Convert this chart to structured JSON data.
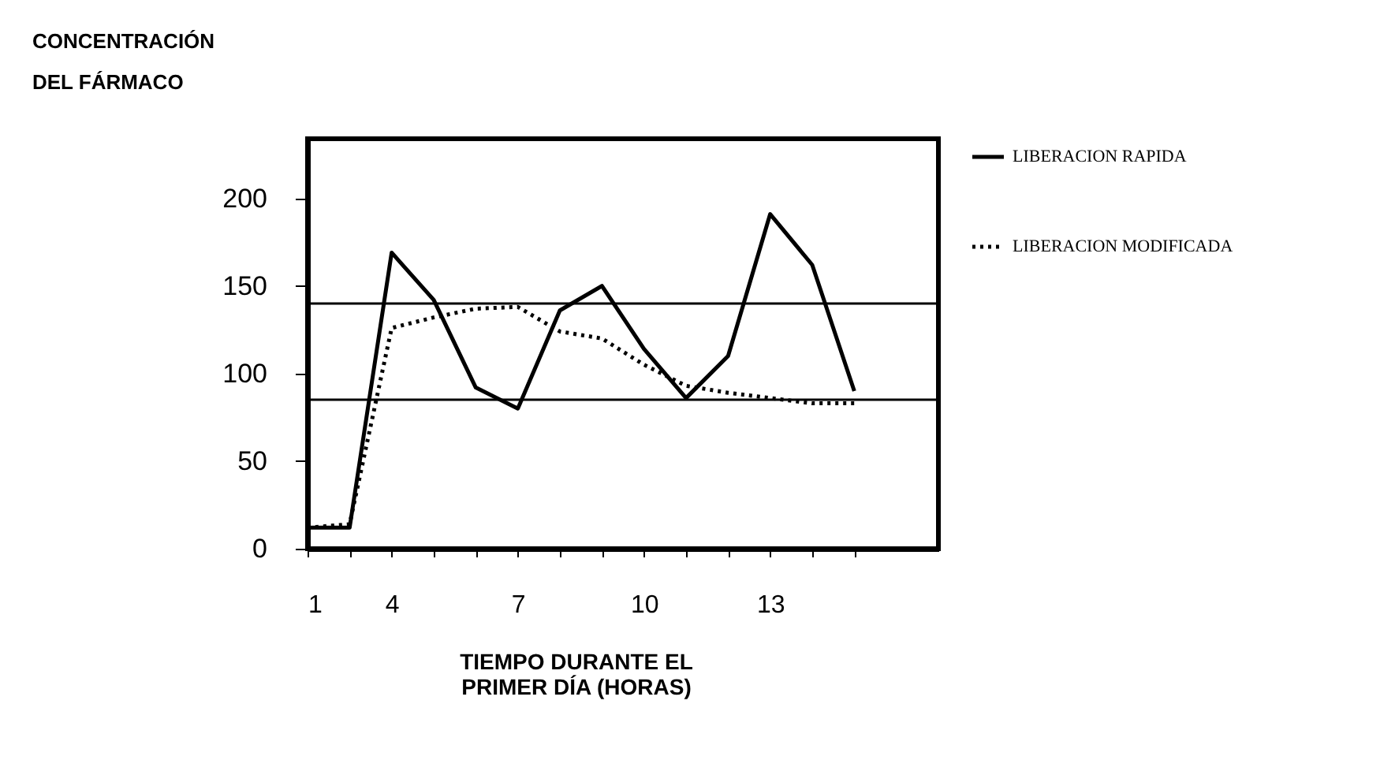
{
  "chart_data": {
    "type": "line",
    "ylabel": "CONCENTRACIÓN DEL FÁRMACO",
    "xlabel": "TIEMPO DURANTE EL PRIMER DÍA (HORAS)",
    "categories": [
      "1",
      null,
      "4",
      null,
      null,
      "7",
      null,
      null,
      "10",
      null,
      null,
      "13",
      null,
      null
    ],
    "series": [
      {
        "name": "LIBERACION RAPIDA",
        "color": "#000000",
        "line_style": "solid",
        "values": [
          12,
          12,
          169,
          142,
          92,
          80,
          136,
          150,
          114,
          86,
          110,
          191,
          162,
          90
        ]
      },
      {
        "name": "LIBERACION MODIFICADA",
        "color": "#000000",
        "line_style": "dotted",
        "values": [
          12,
          14,
          126,
          132,
          137,
          138,
          124,
          120,
          105,
          93,
          89,
          86,
          83,
          83
        ]
      }
    ],
    "ylim": [
      0,
      234
    ],
    "yticks": [
      0,
      50,
      100,
      150,
      200
    ],
    "ref_lines": [
      {
        "axis": "y",
        "value": 140,
        "color": "#000000"
      },
      {
        "axis": "y",
        "value": 85,
        "color": "#000000"
      }
    ],
    "grid": false,
    "legend": "right",
    "marker": "none"
  }
}
